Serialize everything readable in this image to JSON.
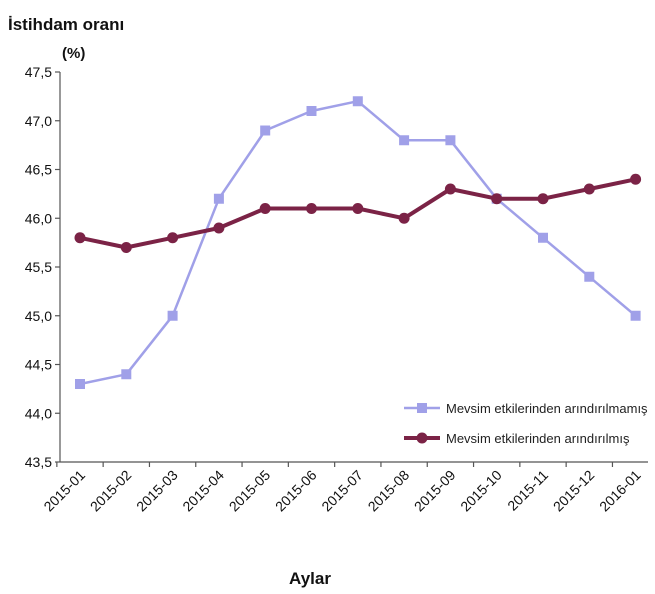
{
  "chart_data": {
    "type": "line",
    "title": "",
    "ylabel": "İstihdam oranı",
    "ylabel_unit": "(%)",
    "xlabel": "Aylar",
    "categories": [
      "2015-01",
      "2015-02",
      "2015-03",
      "2015-04",
      "2015-05",
      "2015-06",
      "2015-07",
      "2015-08",
      "2015-09",
      "2015-10",
      "2015-11",
      "2015-12",
      "2016-01"
    ],
    "ylim": [
      43.5,
      47.5
    ],
    "y_ticks": [
      43.5,
      44.0,
      44.5,
      45.0,
      45.5,
      46.0,
      46.5,
      47.0,
      47.5
    ],
    "y_tick_labels": [
      "43,5",
      "44,0",
      "44,5",
      "45,0",
      "45,5",
      "46,0",
      "46,5",
      "47,0",
      "47,5"
    ],
    "grid": false,
    "legend_position": "bottom-right",
    "series": [
      {
        "name": "Mevsim etkilerinden arındırılmamış",
        "color": "#a0a0e8",
        "marker": "square",
        "values": [
          44.3,
          44.4,
          45.0,
          46.2,
          46.9,
          47.1,
          47.2,
          46.8,
          46.8,
          46.2,
          45.8,
          45.4,
          45.0
        ]
      },
      {
        "name": "Mevsim etkilerinden arındırılmış",
        "color": "#7b2346",
        "marker": "circle",
        "values": [
          45.8,
          45.7,
          45.8,
          45.9,
          46.1,
          46.1,
          46.1,
          46.0,
          46.3,
          46.2,
          46.2,
          46.3,
          46.4
        ]
      }
    ]
  }
}
